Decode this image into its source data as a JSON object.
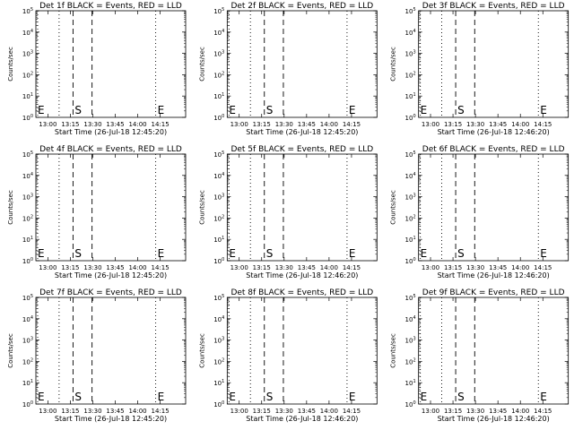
{
  "chart_data": [
    {
      "type": "line",
      "title": "Det 1f BLACK = Events, RED = LLD",
      "ylabel": "Counts/sec",
      "xlabel": "Start Time (26-Jul-18 12:45:20)",
      "x_ticks": [
        "13:00",
        "13:15",
        "13:30",
        "13:45",
        "14:00",
        "14:15"
      ],
      "y_ticks": [
        {
          "base": "10",
          "exp": "0"
        },
        {
          "base": "10",
          "exp": "1"
        },
        {
          "base": "10",
          "exp": "2"
        },
        {
          "base": "10",
          "exp": "3"
        },
        {
          "base": "10",
          "exp": "4"
        },
        {
          "base": "10",
          "exp": "5"
        }
      ],
      "ylim": [
        1,
        100000
      ],
      "xlim": [
        "12:45:20",
        "14:31:00"
      ],
      "start_marker": "S",
      "end_marker": "E",
      "series": []
    },
    {
      "type": "line",
      "title": "Det 2f BLACK = Events, RED = LLD",
      "ylabel": "Counts/sec",
      "xlabel": "Start Time (26-Jul-18 12:45:20)",
      "x_ticks": [
        "13:00",
        "13:15",
        "13:30",
        "13:45",
        "14:00",
        "14:15"
      ],
      "y_ticks": [
        {
          "base": "10",
          "exp": "0"
        },
        {
          "base": "10",
          "exp": "1"
        },
        {
          "base": "10",
          "exp": "2"
        },
        {
          "base": "10",
          "exp": "3"
        },
        {
          "base": "10",
          "exp": "4"
        },
        {
          "base": "10",
          "exp": "5"
        }
      ],
      "ylim": [
        1,
        100000
      ],
      "xlim": [
        "12:45:20",
        "14:31:00"
      ],
      "start_marker": "S",
      "end_marker": "E",
      "series": []
    },
    {
      "type": "line",
      "title": "Det 3f BLACK = Events, RED = LLD",
      "ylabel": "Counts/sec",
      "xlabel": "Start Time (26-Jul-18 12:46:20)",
      "x_ticks": [
        "13:00",
        "13:15",
        "13:30",
        "13:45",
        "14:00",
        "14:15"
      ],
      "y_ticks": [
        {
          "base": "10",
          "exp": "0"
        },
        {
          "base": "10",
          "exp": "1"
        },
        {
          "base": "10",
          "exp": "2"
        },
        {
          "base": "10",
          "exp": "3"
        },
        {
          "base": "10",
          "exp": "4"
        },
        {
          "base": "10",
          "exp": "5"
        }
      ],
      "ylim": [
        1,
        100000
      ],
      "xlim": [
        "12:46:20",
        "14:31:00"
      ],
      "start_marker": "S",
      "end_marker": "E",
      "series": []
    },
    {
      "type": "line",
      "title": "Det 4f BLACK = Events, RED = LLD",
      "ylabel": "Counts/sec",
      "xlabel": "Start Time (26-Jul-18 12:45:20)",
      "x_ticks": [
        "13:00",
        "13:15",
        "13:30",
        "13:45",
        "14:00",
        "14:15"
      ],
      "y_ticks": [
        {
          "base": "10",
          "exp": "0"
        },
        {
          "base": "10",
          "exp": "1"
        },
        {
          "base": "10",
          "exp": "2"
        },
        {
          "base": "10",
          "exp": "3"
        },
        {
          "base": "10",
          "exp": "4"
        },
        {
          "base": "10",
          "exp": "5"
        }
      ],
      "ylim": [
        1,
        100000
      ],
      "xlim": [
        "12:45:20",
        "14:31:00"
      ],
      "start_marker": "S",
      "end_marker": "E",
      "series": []
    },
    {
      "type": "line",
      "title": "Det 5f BLACK = Events, RED = LLD",
      "ylabel": "Counts/sec",
      "xlabel": "Start Time (26-Jul-18 12:46:20)",
      "x_ticks": [
        "13:00",
        "13:15",
        "13:30",
        "13:45",
        "14:00",
        "14:15"
      ],
      "y_ticks": [
        {
          "base": "10",
          "exp": "0"
        },
        {
          "base": "10",
          "exp": "1"
        },
        {
          "base": "10",
          "exp": "2"
        },
        {
          "base": "10",
          "exp": "3"
        },
        {
          "base": "10",
          "exp": "4"
        },
        {
          "base": "10",
          "exp": "5"
        }
      ],
      "ylim": [
        1,
        100000
      ],
      "xlim": [
        "12:46:20",
        "14:31:00"
      ],
      "start_marker": "S",
      "end_marker": "E",
      "series": []
    },
    {
      "type": "line",
      "title": "Det 6f BLACK = Events, RED = LLD",
      "ylabel": "Counts/sec",
      "xlabel": "Start Time (26-Jul-18 12:46:20)",
      "x_ticks": [
        "13:00",
        "13:15",
        "13:30",
        "13:45",
        "14:00",
        "14:15"
      ],
      "y_ticks": [
        {
          "base": "10",
          "exp": "0"
        },
        {
          "base": "10",
          "exp": "1"
        },
        {
          "base": "10",
          "exp": "2"
        },
        {
          "base": "10",
          "exp": "3"
        },
        {
          "base": "10",
          "exp": "4"
        },
        {
          "base": "10",
          "exp": "5"
        }
      ],
      "ylim": [
        1,
        100000
      ],
      "xlim": [
        "12:46:20",
        "14:31:00"
      ],
      "start_marker": "S",
      "end_marker": "E",
      "series": []
    },
    {
      "type": "line",
      "title": "Det 7f BLACK = Events, RED = LLD",
      "ylabel": "Counts/sec",
      "xlabel": "Start Time (26-Jul-18 12:45:20)",
      "x_ticks": [
        "13:00",
        "13:15",
        "13:30",
        "13:45",
        "14:00",
        "14:15"
      ],
      "y_ticks": [
        {
          "base": "10",
          "exp": "0"
        },
        {
          "base": "10",
          "exp": "1"
        },
        {
          "base": "10",
          "exp": "2"
        },
        {
          "base": "10",
          "exp": "3"
        },
        {
          "base": "10",
          "exp": "4"
        },
        {
          "base": "10",
          "exp": "5"
        }
      ],
      "ylim": [
        1,
        100000
      ],
      "xlim": [
        "12:45:20",
        "14:31:00"
      ],
      "start_marker": "S",
      "end_marker": "E",
      "series": []
    },
    {
      "type": "line",
      "title": "Det 8f BLACK = Events, RED = LLD",
      "ylabel": "Counts/sec",
      "xlabel": "Start Time (26-Jul-18 12:46:20)",
      "x_ticks": [
        "13:00",
        "13:15",
        "13:30",
        "13:45",
        "14:00",
        "14:15"
      ],
      "y_ticks": [
        {
          "base": "10",
          "exp": "0"
        },
        {
          "base": "10",
          "exp": "1"
        },
        {
          "base": "10",
          "exp": "2"
        },
        {
          "base": "10",
          "exp": "3"
        },
        {
          "base": "10",
          "exp": "4"
        },
        {
          "base": "10",
          "exp": "5"
        }
      ],
      "ylim": [
        1,
        100000
      ],
      "xlim": [
        "12:46:20",
        "14:31:00"
      ],
      "start_marker": "S",
      "end_marker": "E",
      "series": []
    },
    {
      "type": "line",
      "title": "Det 9f BLACK = Events, RED = LLD",
      "ylabel": "Counts/sec",
      "xlabel": "Start Time (26-Jul-18 12:46:20)",
      "x_ticks": [
        "13:00",
        "13:15",
        "13:30",
        "13:45",
        "14:00",
        "14:15"
      ],
      "y_ticks": [
        {
          "base": "10",
          "exp": "0"
        },
        {
          "base": "10",
          "exp": "1"
        },
        {
          "base": "10",
          "exp": "2"
        },
        {
          "base": "10",
          "exp": "3"
        },
        {
          "base": "10",
          "exp": "4"
        },
        {
          "base": "10",
          "exp": "5"
        }
      ],
      "ylim": [
        1,
        100000
      ],
      "xlim": [
        "12:46:20",
        "14:31:00"
      ],
      "start_marker": "S",
      "end_marker": "E",
      "series": []
    }
  ],
  "colors": {
    "background": "#ffffff",
    "axes": "#000000",
    "events": "#000000",
    "lld": "#ff0000"
  }
}
